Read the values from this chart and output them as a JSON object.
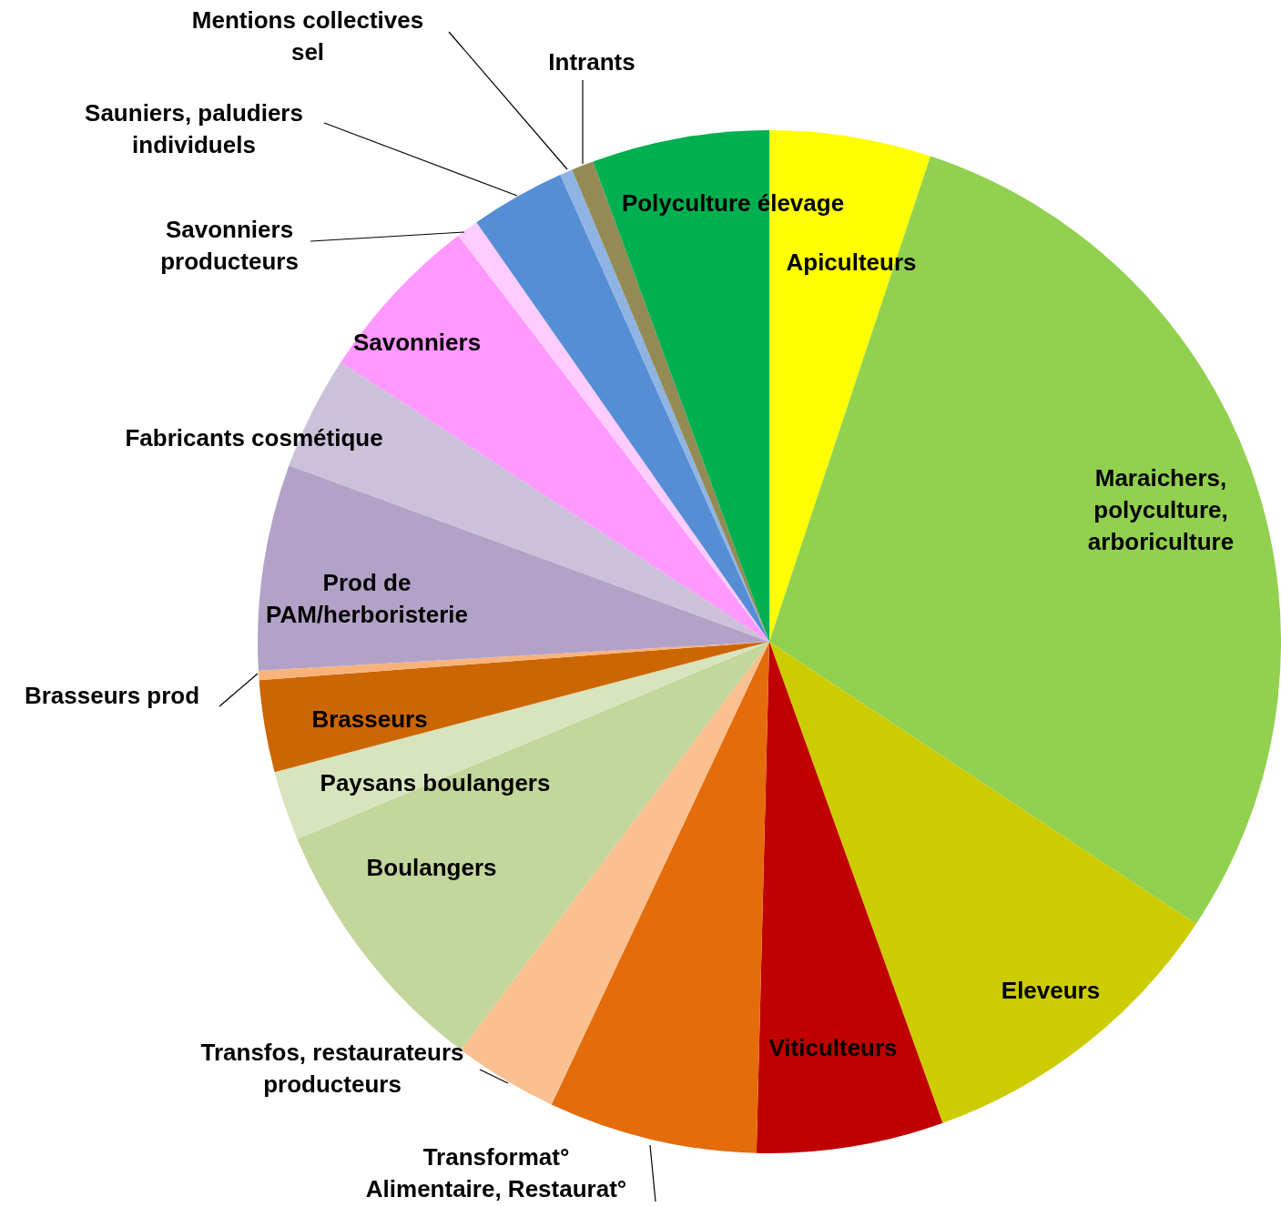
{
  "chart_data": {
    "type": "pie",
    "legend": false,
    "categories": [
      "Apiculteurs",
      "Maraichers, polyculture, arboriculture",
      "Eleveurs",
      "Viticulteurs",
      "Transformat° Alimentaire, Restaurat°",
      "Transfos, restaurateurs producteurs",
      "Boulangers",
      "Paysans boulangers",
      "Brasseurs",
      "Brasseurs prod",
      "Prod de PAM/herboristerie",
      "Fabricants cosmétique",
      "Savonniers",
      "Savonniers producteurs",
      "Sauniers, paludiers individuels",
      "Mentions collectives sel",
      "Intrants",
      "Polyculture élevage"
    ],
    "values": [
      5.1,
      29.2,
      10.2,
      5.9,
      6.6,
      3.3,
      8.4,
      2.2,
      2.9,
      0.3,
      6.5,
      3.6,
      5.4,
      0.7,
      3.0,
      0.4,
      0.7,
      5.6
    ],
    "colors": [
      "#ffff00",
      "#92d050",
      "#cccc00",
      "#c00000",
      "#e46c0a",
      "#fac090",
      "#c3d69b",
      "#d7e4bd",
      "#cc6600",
      "#f9b37a",
      "#b3a2c7",
      "#ccc1da",
      "#ff99ff",
      "#ffccff",
      "#558ed5",
      "#8eb4e3",
      "#948a54",
      "#00b050"
    ]
  }
}
